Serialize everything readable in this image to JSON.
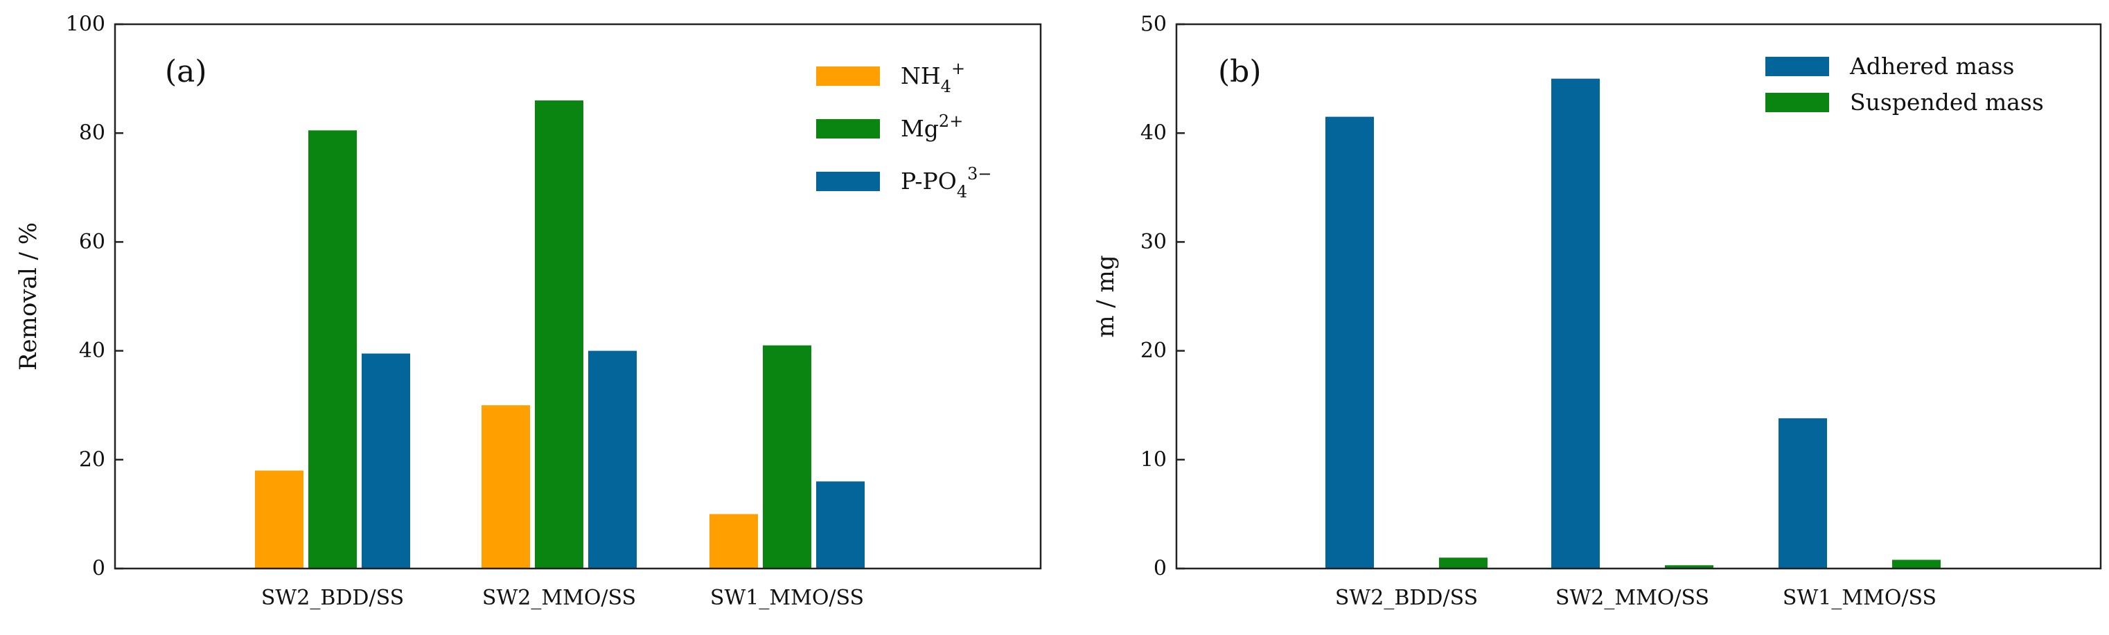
{
  "chart_data": [
    {
      "type": "bar",
      "panel_label": "(a)",
      "title": "",
      "xlabel": "",
      "ylabel": "Removal / %",
      "ylim": [
        0,
        100
      ],
      "yticks": [
        0,
        20,
        40,
        60,
        80,
        100
      ],
      "ytick_labels": [
        "0",
        "20",
        "40",
        "60",
        "80",
        "100"
      ],
      "categories": [
        "SW2_BDD/SS",
        "SW2_MMO/SS",
        "SW1_MMO/SS"
      ],
      "series": [
        {
          "name": "NH4+",
          "label_main": "NH",
          "label_sub": "4",
          "label_sup": "+",
          "color": "#FFA000",
          "values": [
            18,
            30,
            10
          ]
        },
        {
          "name": "Mg2+",
          "label_main": "Mg",
          "label_sub": "",
          "label_sup": "2+",
          "color": "#0A8512",
          "values": [
            80.5,
            86,
            41
          ]
        },
        {
          "name": "P-PO43-",
          "label_main": "P-PO",
          "label_sub": "4",
          "label_sup": "3−",
          "color": "#04659B",
          "values": [
            39.5,
            40,
            16
          ]
        }
      ],
      "legend_position": "top-right",
      "grid": false
    },
    {
      "type": "bar",
      "panel_label": "(b)",
      "title": "",
      "xlabel": "",
      "ylabel": "m / mg",
      "ylim": [
        0,
        50
      ],
      "yticks": [
        0,
        10,
        20,
        30,
        40,
        50
      ],
      "ytick_labels": [
        "0",
        "10",
        "20",
        "30",
        "40",
        "50"
      ],
      "categories": [
        "SW2_BDD/SS",
        "SW2_MMO/SS",
        "SW1_MMO/SS"
      ],
      "series": [
        {
          "name": "Adhered mass",
          "label_main": "Adhered mass",
          "label_sub": "",
          "label_sup": "",
          "color": "#04659B",
          "values": [
            41.5,
            45,
            13.8
          ]
        },
        {
          "name": "Suspended mass",
          "label_main": "Suspended mass",
          "label_sub": "",
          "label_sup": "",
          "color": "#0A8512",
          "values": [
            1.0,
            0.3,
            0.8
          ]
        }
      ],
      "legend_position": "top-right",
      "grid": false
    }
  ]
}
